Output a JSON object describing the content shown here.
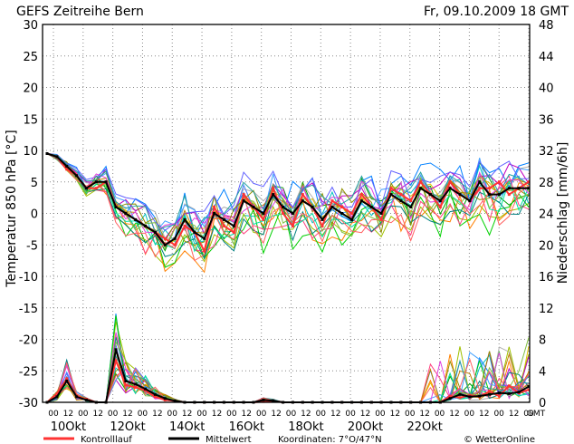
{
  "header": {
    "title": "GEFS Zeitreihe Bern",
    "date": "Fr, 09.10.2009 18 GMT"
  },
  "footer": {
    "legend": [
      {
        "label": "Kontrolllauf",
        "color": "#ff3333"
      },
      {
        "label": "Mittelwert",
        "color": "#000000"
      }
    ],
    "coordinates": "Koordinaten: 7°O/47°N",
    "credit": "© WetterOnline"
  },
  "chart_data": {
    "type": "line",
    "y_left": {
      "label": "Temperatur 850 hPa [°C]",
      "range": [
        -30,
        30
      ],
      "ticks": [
        "30",
        "25",
        "20",
        "15",
        "10",
        "5",
        "0",
        "-5",
        "-10",
        "-15",
        "-20",
        "-25",
        "-30"
      ]
    },
    "y_right": {
      "label": "Niederschlag [mm/6h]",
      "range": [
        0,
        48
      ],
      "ticks": [
        "48",
        "44",
        "40",
        "36",
        "32",
        "28",
        "24",
        "20",
        "16",
        "12",
        "8",
        "4",
        "0"
      ],
      "lower_ticks": [
        "12",
        "8",
        "4",
        "0"
      ]
    },
    "x": {
      "hour_ticks": [
        "00",
        "12",
        "00",
        "12",
        "00",
        "12",
        "00",
        "12",
        "00",
        "12",
        "00",
        "12",
        "00",
        "12",
        "00",
        "12",
        "00",
        "12",
        "00",
        "12",
        "00",
        "12",
        "00",
        "12",
        "00",
        "12",
        "00",
        "12",
        "00",
        "12",
        "00",
        "12",
        "00"
      ],
      "end_label": "GMT",
      "days": [
        "10Okt",
        "12Okt",
        "14Okt",
        "16Okt",
        "18Okt",
        "20Okt",
        "22Okt"
      ]
    },
    "grid": true,
    "mean_temperature": [
      9.5,
      9,
      7.5,
      6,
      4,
      5,
      5,
      1,
      0,
      -1,
      -2,
      -3,
      -5,
      -4,
      -1,
      -3,
      -4,
      0,
      -1,
      -2,
      2,
      1,
      0,
      3,
      1,
      0,
      2,
      1,
      -1,
      1,
      0,
      -1,
      2,
      1,
      0,
      3,
      2,
      1,
      4,
      3,
      2,
      4,
      3,
      2,
      5,
      3,
      3,
      4,
      4,
      4
    ],
    "control_temperature": [
      9.5,
      9,
      7,
      6,
      4,
      4,
      5,
      1,
      0,
      -1,
      -2,
      -3,
      -4,
      -5,
      -2,
      -3,
      -6,
      1,
      -2,
      -3,
      3,
      1,
      -1,
      4,
      0,
      -2,
      3,
      1,
      -2,
      2,
      1,
      0,
      3,
      1,
      -1,
      4,
      3,
      2,
      5,
      3,
      1,
      5,
      3,
      2,
      4,
      4,
      5,
      3,
      4,
      5
    ],
    "mean_precipitation": [
      0,
      0.7,
      2.7,
      0.7,
      0.3,
      0,
      0,
      6.7,
      2.7,
      2.3,
      1.7,
      1,
      0.5,
      0.2,
      0,
      0,
      0,
      0,
      0,
      0,
      0,
      0,
      0.3,
      0.2,
      0,
      0,
      0,
      0,
      0,
      0,
      0,
      0,
      0,
      0,
      0,
      0,
      0,
      0,
      0,
      0,
      0,
      0.5,
      1,
      0.7,
      0.8,
      1,
      1.2,
      1.1,
      1.3,
      2
    ],
    "control_precipitation": [
      0,
      1.1,
      3,
      0.8,
      0.4,
      0,
      0,
      5.3,
      2.2,
      1.9,
      1.5,
      0.7,
      0.3,
      0.2,
      0,
      0,
      0,
      0,
      0,
      0,
      0,
      0,
      0.1,
      0.2,
      0,
      0,
      0,
      0,
      0,
      0,
      0,
      0,
      0,
      0,
      0,
      0,
      0,
      0,
      0,
      0,
      0,
      0.8,
      0.6,
      0.9,
      0.7,
      1.4,
      0.8,
      2.1,
      1.2,
      1.6
    ],
    "ensemble_series_count": 20
  }
}
